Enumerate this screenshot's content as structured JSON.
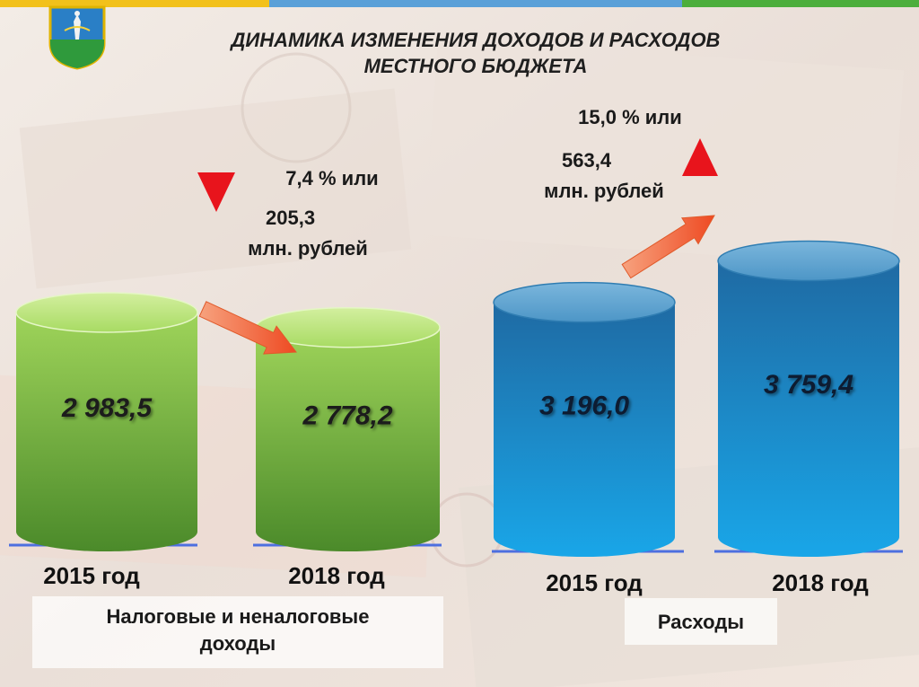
{
  "title_lines": [
    "ДИНАМИКА ИЗМЕНЕНИЯ ДОХОДОВ И  РАСХОДОВ",
    "МЕСТНОГО БЮДЖЕТА"
  ],
  "chart_data": {
    "type": "bar",
    "unit": "",
    "groups": [
      {
        "name_lines": [
          "Налоговые и неналоговые",
          "доходы"
        ],
        "color": "#5aa52e",
        "change": {
          "direction": "down",
          "percent_text": "7,4 % или",
          "amount_text": "205,3",
          "unit_text": "млн. рублей"
        },
        "bars": [
          {
            "category": "2015 год",
            "value": 2983.5,
            "label": "2 983,5"
          },
          {
            "category": "2018 год",
            "value": 2778.2,
            "label": "2 778,2"
          }
        ]
      },
      {
        "name_lines": [
          "Расходы"
        ],
        "color": "#1a8fd0",
        "change": {
          "direction": "up",
          "percent_text": "15,0 % или",
          "amount_text": "563,4",
          "unit_text": "млн. рублей"
        },
        "bars": [
          {
            "category": "2015 год",
            "value": 3196.0,
            "label": "3 196,0"
          },
          {
            "category": "2018 год",
            "value": 3759.4,
            "label": "3 759,4"
          }
        ]
      }
    ]
  },
  "colors": {
    "income_top": "#b7e27a",
    "income_bottom": "#4e8d2a",
    "expense_top": "#5ba3cf",
    "expense_bottom": "#1a9ad9",
    "arrow": "#f2643a",
    "triangle": "#e8141c",
    "baseline": "#4d6fe0"
  }
}
